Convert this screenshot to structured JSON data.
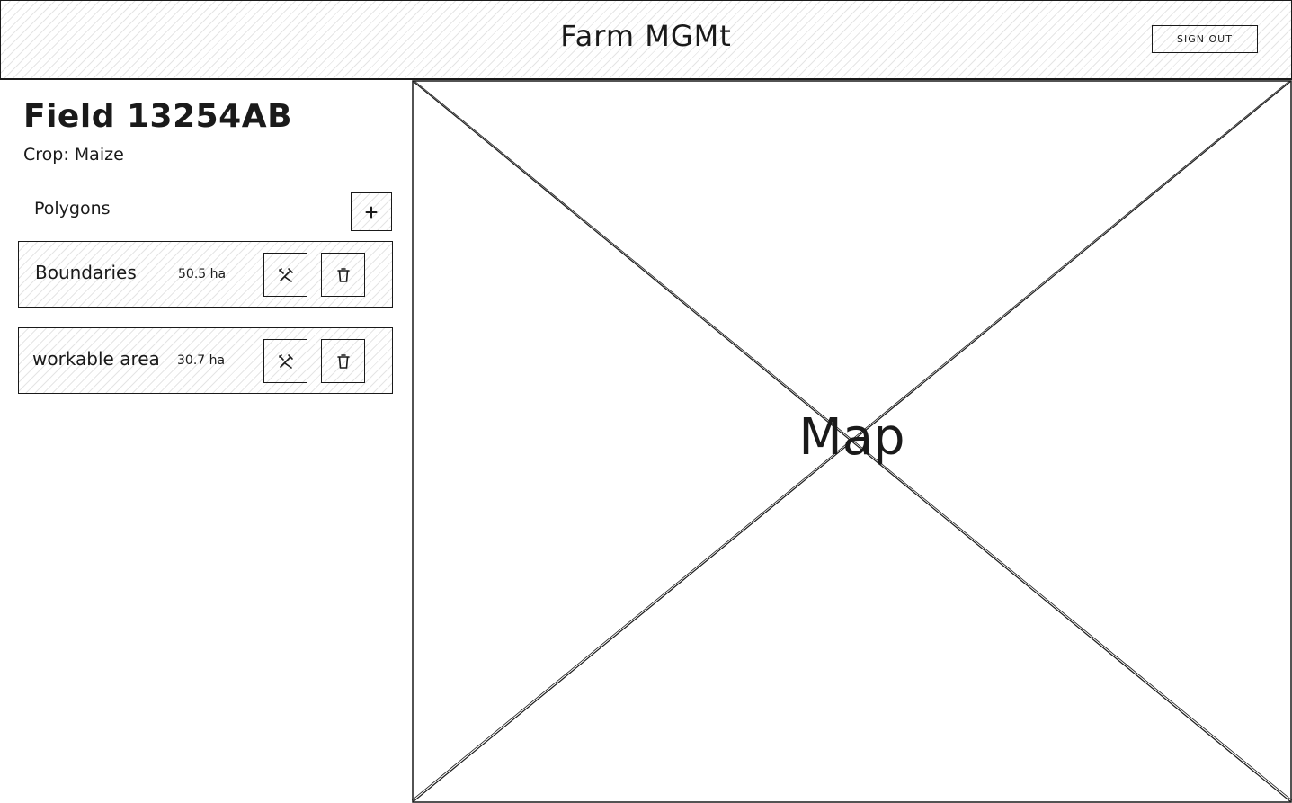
{
  "header": {
    "title": "Farm MGMt",
    "sign_out_label": "SIGN OUT"
  },
  "sidebar": {
    "field_title": "Field 13254AB",
    "crop": "Crop: Maize",
    "polygons_heading": "Polygons",
    "polygons": [
      {
        "name": "Boundaries",
        "area": "50.5 ha"
      },
      {
        "name": "workable area",
        "area": "30.7 ha"
      }
    ]
  },
  "map": {
    "label": "Map"
  },
  "icons": {
    "add": "plus-icon",
    "edit": "edit-tools-icon",
    "delete": "trash-icon"
  }
}
